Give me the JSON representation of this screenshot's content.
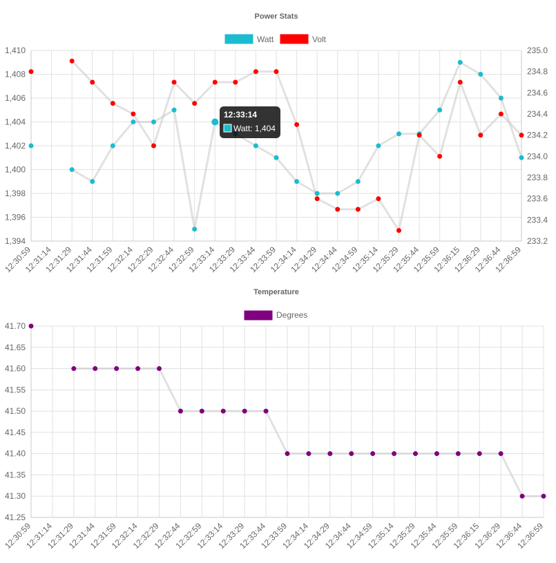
{
  "chart_data": [
    {
      "type": "line",
      "title": "Power Stats",
      "x": [
        "12:30:59",
        "12:31:14",
        "12:31:29",
        "12:31:44",
        "12:31:59",
        "12:32:14",
        "12:32:29",
        "12:32:44",
        "12:32:59",
        "12:33:14",
        "12:33:29",
        "12:33:44",
        "12:33:59",
        "12:34:14",
        "12:34:29",
        "12:34:44",
        "12:34:59",
        "12:35:14",
        "12:35:29",
        "12:35:44",
        "12:35:59",
        "12:36:15",
        "12:36:29",
        "12:36:44",
        "12:36:59"
      ],
      "series": [
        {
          "name": "Watt",
          "color": "#1bbcd0",
          "axis": "left",
          "values": [
            1402,
            null,
            1400,
            1399,
            1402,
            1404,
            1404,
            1405,
            1395,
            1404,
            1403,
            1402,
            1401,
            1399,
            1398,
            1398,
            1399,
            1402,
            1403,
            1403,
            1405,
            1409,
            1408,
            1406,
            1401
          ]
        },
        {
          "name": "Volt",
          "color": "#ff0000",
          "axis": "right",
          "values": [
            234.8,
            null,
            234.9,
            234.7,
            234.5,
            234.4,
            234.1,
            234.7,
            234.5,
            234.7,
            234.7,
            234.8,
            234.8,
            234.3,
            233.6,
            233.5,
            233.5,
            233.6,
            233.3,
            234.2,
            234.0,
            234.7,
            234.2,
            234.4,
            234.2
          ]
        }
      ],
      "y_left": {
        "min": 1394,
        "max": 1410,
        "step": 2,
        "ticks": [
          "1,394",
          "1,396",
          "1,398",
          "1,400",
          "1,402",
          "1,404",
          "1,406",
          "1,408",
          "1,410"
        ]
      },
      "y_right": {
        "min": 233.2,
        "max": 235.0,
        "step": 0.2,
        "ticks": [
          "233.2",
          "233.4",
          "233.6",
          "233.8",
          "234.0",
          "234.2",
          "234.4",
          "234.6",
          "234.8",
          "235.0"
        ]
      },
      "grid": true,
      "legend": "top-center",
      "tooltip": {
        "title": "12:33:14",
        "label": "Watt: 1,404",
        "index": 9,
        "series": 0
      }
    },
    {
      "type": "line",
      "title": "Temperature",
      "x": [
        "12:30:59",
        "12:31:14",
        "12:31:29",
        "12:31:44",
        "12:31:59",
        "12:32:14",
        "12:32:29",
        "12:32:44",
        "12:32:59",
        "12:33:14",
        "12:33:29",
        "12:33:44",
        "12:33:59",
        "12:34:14",
        "12:34:29",
        "12:34:44",
        "12:34:59",
        "12:35:14",
        "12:35:29",
        "12:35:44",
        "12:35:59",
        "12:36:15",
        "12:36:29",
        "12:36:44",
        "12:36:59"
      ],
      "series": [
        {
          "name": "Degrees",
          "color": "#800080",
          "axis": "left",
          "values": [
            41.7,
            null,
            41.6,
            41.6,
            41.6,
            41.6,
            41.6,
            41.5,
            41.5,
            41.5,
            41.5,
            41.5,
            41.4,
            41.4,
            41.4,
            41.4,
            41.4,
            41.4,
            41.4,
            41.4,
            41.4,
            41.4,
            41.4,
            41.3,
            41.3
          ]
        }
      ],
      "y_left": {
        "min": 41.25,
        "max": 41.7,
        "step": 0.05,
        "ticks": [
          "41.25",
          "41.30",
          "41.35",
          "41.40",
          "41.45",
          "41.50",
          "41.55",
          "41.60",
          "41.65",
          "41.70"
        ]
      },
      "grid": true,
      "legend": "top-center"
    }
  ]
}
